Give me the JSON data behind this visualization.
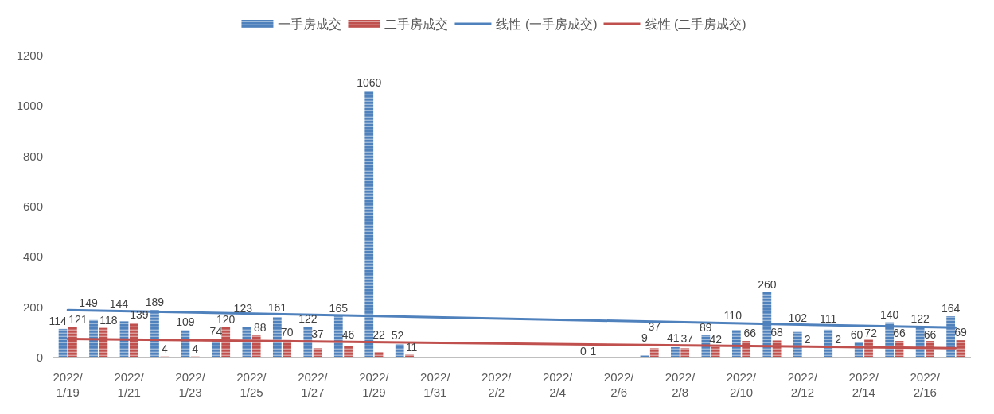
{
  "chart_data": {
    "type": "bar",
    "x": [
      "2022-01-19",
      "2022-01-20",
      "2022-01-21",
      "2022-01-22",
      "2022-01-23",
      "2022-01-24",
      "2022-01-25",
      "2022-01-26",
      "2022-01-27",
      "2022-01-28",
      "2022-01-29",
      "2022-01-30",
      "2022-01-31",
      "2022-02-01",
      "2022-02-02",
      "2022-02-03",
      "2022-02-04",
      "2022-02-05",
      "2022-02-06",
      "2022-02-07",
      "2022-02-08",
      "2022-02-09",
      "2022-02-10",
      "2022-02-11",
      "2022-02-12",
      "2022-02-13",
      "2022-02-14",
      "2022-02-15",
      "2022-02-16",
      "2022-02-17"
    ],
    "xlim": [
      "2022-01-18T12:00",
      "2022-02-17T12:00"
    ],
    "xticks": [
      {
        "value": "2022-01-19",
        "label": "2022/1/19"
      },
      {
        "value": "2022-01-21",
        "label": "2022/1/21"
      },
      {
        "value": "2022-01-23",
        "label": "2022/1/23"
      },
      {
        "value": "2022-01-25",
        "label": "2022/1/25"
      },
      {
        "value": "2022-01-27",
        "label": "2022/1/27"
      },
      {
        "value": "2022-01-29",
        "label": "2022/1/29"
      },
      {
        "value": "2022-01-31",
        "label": "2022/1/31"
      },
      {
        "value": "2022-02-02",
        "label": "2022/2/2"
      },
      {
        "value": "2022-02-04",
        "label": "2022/2/4"
      },
      {
        "value": "2022-02-06",
        "label": "2022/2/6"
      },
      {
        "value": "2022-02-08",
        "label": "2022/2/8"
      },
      {
        "value": "2022-02-10",
        "label": "2022/2/10"
      },
      {
        "value": "2022-02-12",
        "label": "2022/2/12"
      },
      {
        "value": "2022-02-14",
        "label": "2022/2/14"
      },
      {
        "value": "2022-02-16",
        "label": "2022/2/16"
      }
    ],
    "ylim": [
      0,
      1200
    ],
    "yticks": [
      0,
      200,
      400,
      600,
      800,
      1000,
      1200
    ],
    "legend": "top",
    "series": [
      {
        "name": "一手房成交",
        "color": "#4f81bd",
        "values": [
          114,
          149,
          144,
          189,
          109,
          74,
          123,
          161,
          122,
          165,
          1060,
          52,
          null,
          null,
          null,
          null,
          null,
          0,
          null,
          9,
          41,
          89,
          110,
          260,
          102,
          111,
          60,
          140,
          122,
          164
        ],
        "value_labels": [
          "114",
          "149",
          "144",
          "189",
          "109",
          "74",
          "123",
          "161",
          "122",
          "165",
          "1060",
          "52",
          null,
          null,
          null,
          null,
          null,
          "0",
          null,
          "9",
          "41",
          "89",
          "110",
          "260",
          "102",
          "111",
          "60",
          "140",
          "122",
          "164"
        ]
      },
      {
        "name": "二手房成交",
        "color": "#c0504d",
        "values": [
          121,
          118,
          139,
          4,
          4,
          120,
          88,
          70,
          37,
          46,
          22,
          11,
          null,
          null,
          null,
          null,
          null,
          1,
          null,
          37,
          37,
          42,
          66,
          68,
          2,
          2,
          72,
          66,
          66,
          69
        ],
        "value_labels": [
          "121",
          "118",
          "139",
          "4",
          "4",
          "120",
          "88",
          "70",
          "37",
          "46",
          "22",
          "11",
          null,
          null,
          null,
          null,
          null,
          "1",
          null,
          "37",
          "37",
          "42",
          "66",
          "68",
          "2",
          "2",
          "72",
          "66",
          "66",
          "69"
        ]
      },
      {
        "type": "line",
        "name": "线性 (一手房成交)",
        "color": "#4f81bd",
        "x": [
          "2022-01-19",
          "2022-02-17"
        ],
        "values": [
          189,
          119
        ]
      },
      {
        "type": "line",
        "name": "线性 (二手房成交)",
        "color": "#c0504d",
        "x": [
          "2022-01-19",
          "2022-02-17"
        ],
        "values": [
          74,
          37
        ]
      }
    ]
  }
}
